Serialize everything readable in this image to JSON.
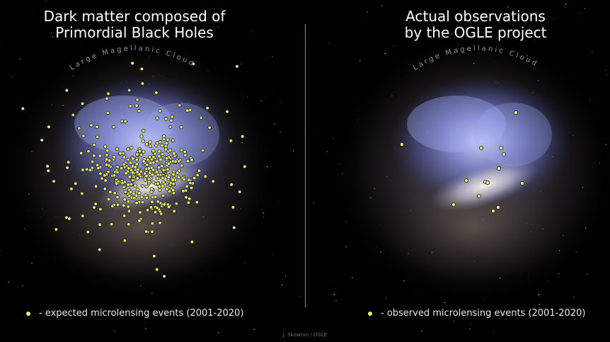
{
  "left_panel": {
    "title_line1": "Dark matter composed of",
    "title_line2": "Primordial Black Holes",
    "galaxy_label": "Large Magellanic Cloud",
    "legend_text": "- expected microlensing events (2001-2020)",
    "dot_color": "#e8ef7a"
  },
  "right_panel": {
    "title_line1": "Actual observations",
    "title_line2": "by the OGLE project",
    "galaxy_label": "Large Magellanic Cloud",
    "legend_text": "- observed microlensing events (2001-2020)",
    "dot_color": "#e8ef7a"
  },
  "credit": {
    "author": "J. Skowron /",
    "project": "OGLE"
  }
}
